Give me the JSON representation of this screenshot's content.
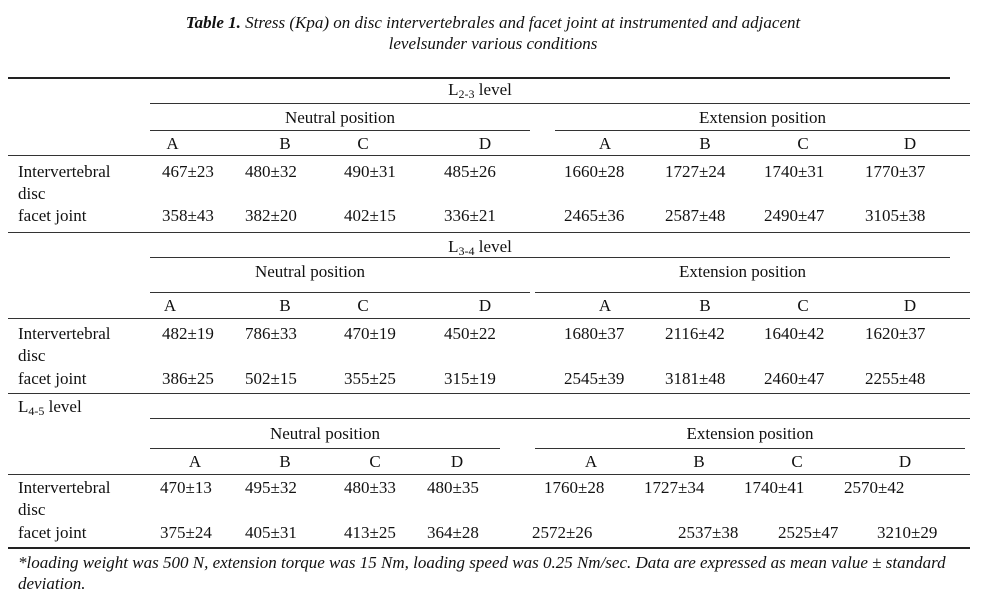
{
  "caption": {
    "label": "Table 1.",
    "text_line1": "Stress (Kpa) on disc intervertebrales and facet joint at instrumented and adjacent",
    "text_line2": "levelsunder various conditions"
  },
  "groups": {
    "neutral": "Neutral position",
    "extension": "Extension position"
  },
  "columns": [
    "A",
    "B",
    "C",
    "D",
    "A",
    "B",
    "C",
    "D"
  ],
  "row_labels": {
    "intervertebral_1": "Intervertebral",
    "intervertebral_2": "disc",
    "facet": "facet joint"
  },
  "sections": [
    {
      "level_main": "L",
      "level_sub": "2-3",
      "level_suffix": " level",
      "intervertebral": [
        "467±23",
        "480±32",
        "490±31",
        "485±26",
        "1660±28",
        "1727±24",
        "1740±31",
        "1770±37"
      ],
      "facet": [
        "358±43",
        "382±20",
        "402±15",
        "336±21",
        "2465±36",
        "2587±48",
        "2490±47",
        "3105±38"
      ]
    },
    {
      "level_main": "L",
      "level_sub": "3-4",
      "level_suffix": " level",
      "intervertebral": [
        "482±19",
        "786±33",
        "470±19",
        "450±22",
        "1680±37",
        "2116±42",
        "1640±42",
        "1620±37"
      ],
      "facet": [
        "386±25",
        "502±15",
        "355±25",
        "315±19",
        "2545±39",
        "3181±48",
        "2460±47",
        "2255±48"
      ]
    },
    {
      "level_main": "L",
      "level_sub": "4-5",
      "level_suffix": " level",
      "intervertebral": [
        "470±13",
        "495±32",
        "480±33",
        "480±35",
        "1760±28",
        "1727±34",
        "1740±41",
        "2570±42"
      ],
      "facet": [
        "375±24",
        "405±31",
        "413±25",
        "364±28",
        "2572±26",
        "2537±38",
        "2525±47",
        "3210±29"
      ]
    }
  ],
  "footnote": "*loading weight was 500 N, extension torque was 15 Nm, loading speed was 0.25 Nm/sec. Data are expressed as mean value ± standard deviation."
}
